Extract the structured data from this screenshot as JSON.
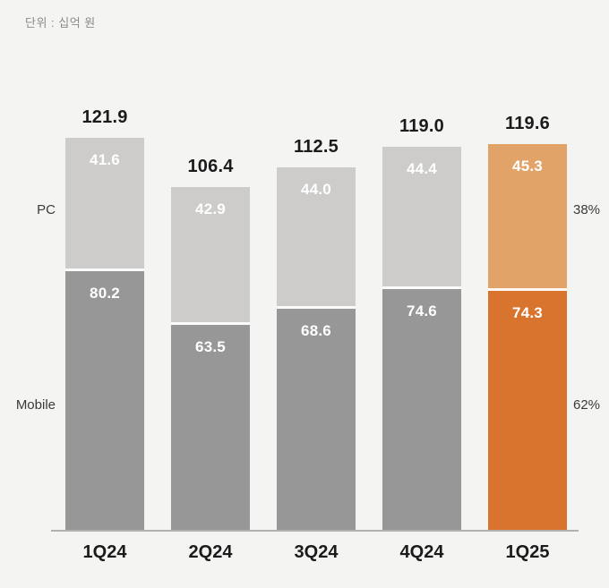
{
  "chart": {
    "unit_label": "단위 : 십억 원",
    "left_labels": {
      "pc": "PC",
      "mobile": "Mobile"
    }
  },
  "chart_data": {
    "type": "bar",
    "stacked": true,
    "categories": [
      "1Q24",
      "2Q24",
      "3Q24",
      "4Q24",
      "1Q25"
    ],
    "series": [
      {
        "name": "Mobile",
        "values": [
          80.2,
          63.5,
          68.6,
          74.6,
          74.3
        ],
        "labels": [
          "80.2",
          "63.5",
          "68.6",
          "74.6",
          "74.3"
        ]
      },
      {
        "name": "PC",
        "values": [
          41.6,
          42.9,
          44.0,
          44.4,
          45.3
        ],
        "labels": [
          "41.6",
          "42.9",
          "44.0",
          "44.4",
          "45.3"
        ]
      }
    ],
    "totals": [
      121.9,
      106.4,
      112.5,
      119.0,
      119.6
    ],
    "total_labels": [
      "121.9",
      "106.4",
      "112.5",
      "119.0",
      "119.6"
    ],
    "highlight_index": 4,
    "share_labels": {
      "pc": "38%",
      "mobile": "62%"
    },
    "colors": {
      "pc": "#cdcccb",
      "mobile": "#989797",
      "pc_highlight": "#e2a368",
      "mobile_highlight": "#d9742e"
    },
    "legend_position": "left",
    "grid": false,
    "ylim": [
      0,
      135
    ]
  }
}
